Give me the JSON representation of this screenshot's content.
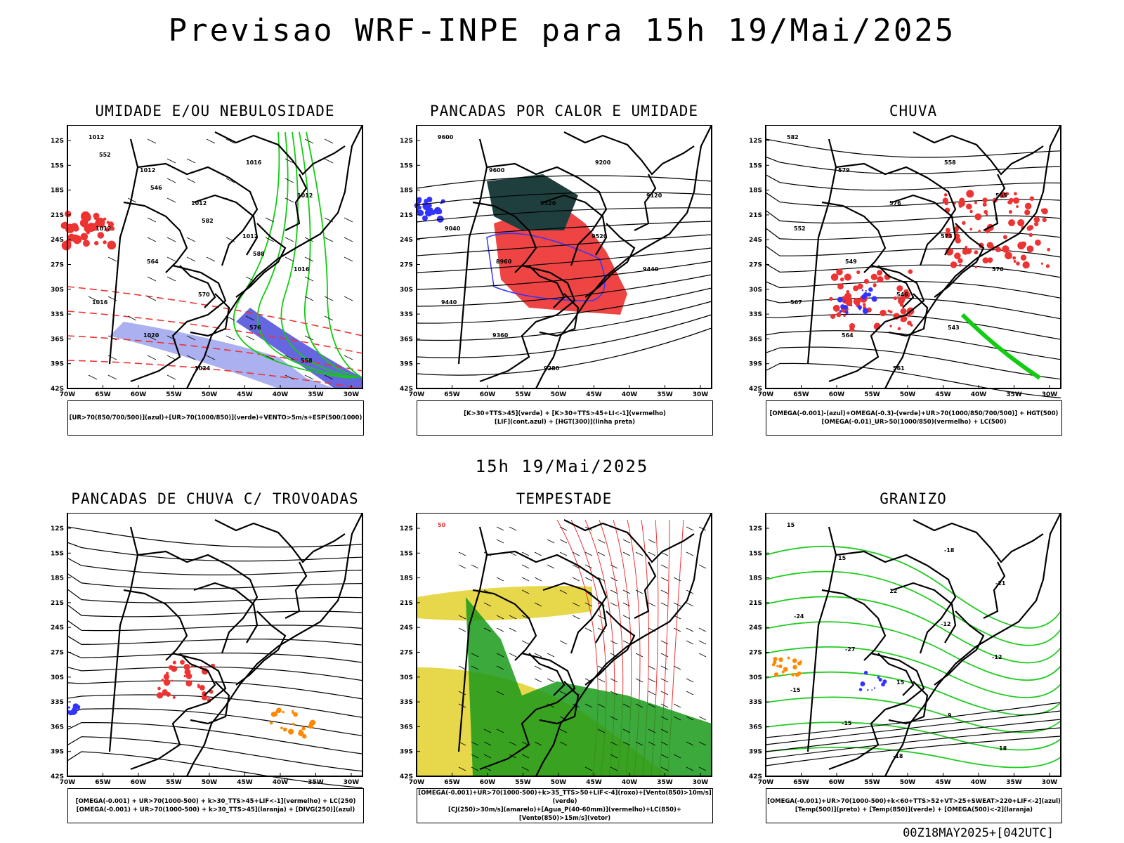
{
  "title": "Previsao WRF-INPE  para 15h 19/Mai/2025",
  "mid_title": "15h 19/Mai/2025",
  "footer": "00Z18MAY2025+[042UTC]",
  "axes": {
    "lat_ticks": [
      "12S",
      "15S",
      "18S",
      "21S",
      "24S",
      "27S",
      "30S",
      "33S",
      "36S",
      "39S",
      "42S"
    ],
    "lon_ticks": [
      "70W",
      "65W",
      "60W",
      "55W",
      "50W",
      "45W",
      "40W",
      "35W",
      "30W"
    ]
  },
  "panels": [
    {
      "title": "UMIDADE E/OU NEBULOSIDADE",
      "legend": [
        "[UR>70(850/700/500)](azul)+[UR>70(1000/850)](verde)+VENTO>5m/s+ESP(500/1000)"
      ],
      "labels": [
        "1012",
        "1012",
        "1012",
        "1012",
        "1016",
        "1016",
        "1020",
        "1024",
        "1016",
        "1012",
        "1012",
        "564",
        "570",
        "576",
        "558",
        "552",
        "546",
        "582",
        "588"
      ]
    },
    {
      "title": "PANCADAS POR CALOR E UMIDADE",
      "legend": [
        "[K>30+TTS>45](verde) + [K>30+TTS>45+LI<-1](vermelho)",
        "[LIF](cont.azul) + [HGT(300)](linha preta)"
      ],
      "labels": [
        "9600",
        "9600",
        "9520",
        "9520",
        "9440",
        "9440",
        "9360",
        "9280",
        "9200",
        "9120",
        "9040",
        "8960"
      ]
    },
    {
      "title": "CHUVA",
      "legend": [
        "[OMEGA(-0.001)-(azul)+OMEGA(-0.3)-(verde)+UR>70(1000/850/700/500)] + HGT(500)",
        "[OMEGA(-0.01)_UR>50(1000/850)(vermelho) + LC(500)"
      ],
      "labels": [
        "582",
        "579",
        "576",
        "573",
        "570",
        "567",
        "564",
        "561",
        "558",
        "555",
        "552",
        "549",
        "546",
        "543"
      ]
    },
    {
      "title": "PANCADAS DE CHUVA C/ TROVOADAS",
      "legend": [
        "[OMEGA(-0.001) + UR>70(1000-500) + k>30_TTS>45+LIF<-1](vermelho) + LC(250)",
        "[OMEGA(-0.001) + UR>70(1000-500) + k>30_TTS>45](laranja) + [DIVG(250)](azul)"
      ],
      "labels": []
    },
    {
      "title": "TEMPESTADE",
      "legend": [
        "[OMEGA(-0.001)+UR>70(1000-500)+k>35_TTS>50+LIF<-4](roxo)+[Vento(850)>10m/s](verde)",
        "[CJ(250)>30m/s](amarelo)+[Agua_P(40-60mm)](vermelho)+LC(850)+[Vento(850)>15m/s](vetor)"
      ],
      "labels": [
        "50"
      ]
    },
    {
      "title": "GRANIZO",
      "legend": [
        "[OMEGA(-0.001)+UR>70(1000-500)+k<60+TTS>52+VT>25+SWEAT>220+LIF<-2](azul)",
        "[Temp(500)](preto) + [Temp(850)](verde) + [OMEGA(500)<-2](laranja)"
      ],
      "labels": [
        "15",
        "15",
        "12",
        "-12",
        "-12",
        "-15",
        "-15",
        "-18",
        "-18",
        "-21",
        "-24",
        "-27",
        "15",
        "9",
        "18"
      ]
    }
  ]
}
